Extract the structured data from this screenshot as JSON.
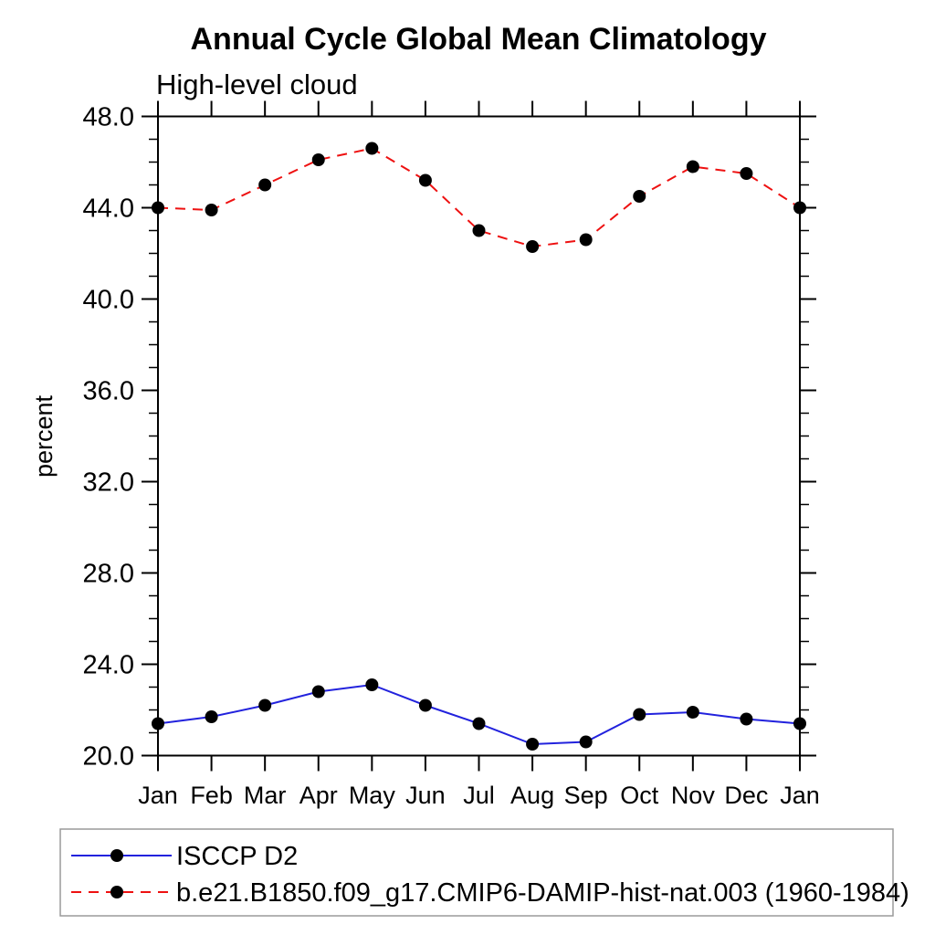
{
  "chart_data": {
    "type": "line",
    "title": "Annual Cycle Global Mean Climatology",
    "subtitle": "High-level cloud",
    "ylabel": "percent",
    "xlabel": "",
    "ylim": [
      20.0,
      48.0
    ],
    "ytick_major_interval": 4.0,
    "ytick_minor_interval": 1.0,
    "ytick_labels": [
      "20.0",
      "24.0",
      "28.0",
      "32.0",
      "36.0",
      "40.0",
      "44.0",
      "48.0"
    ],
    "categories": [
      "Jan",
      "Feb",
      "Mar",
      "Apr",
      "May",
      "Jun",
      "Jul",
      "Aug",
      "Sep",
      "Oct",
      "Nov",
      "Dec",
      "Jan"
    ],
    "grid": false,
    "legend_position": "bottom",
    "legend_border_color": "#9a9a9a",
    "axis_color": "#000000",
    "marker": "circle",
    "marker_color": "#000000",
    "series": [
      {
        "name": "ISCCP D2",
        "color": "#2222dd",
        "style": "solid",
        "values": [
          21.4,
          21.7,
          22.2,
          22.8,
          23.1,
          22.2,
          21.4,
          20.5,
          20.6,
          21.8,
          21.9,
          21.6,
          21.4
        ]
      },
      {
        "name": "b.e21.B1850.f09_g17.CMIP6-DAMIP-hist-nat.003 (1960-1984)",
        "color": "#ee1111",
        "style": "dashed",
        "values": [
          44.0,
          43.9,
          45.0,
          46.1,
          46.6,
          45.2,
          43.0,
          42.3,
          42.6,
          44.5,
          45.8,
          45.5,
          44.0
        ]
      }
    ]
  }
}
